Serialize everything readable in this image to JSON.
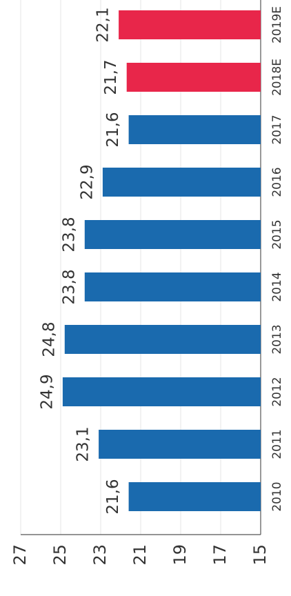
{
  "chart_data": {
    "type": "bar",
    "categories": [
      "2010",
      "2011",
      "2012",
      "2013",
      "2014",
      "2015",
      "2016",
      "2017",
      "2018E",
      "2019E"
    ],
    "values": [
      21.6,
      23.1,
      24.9,
      24.8,
      23.8,
      23.8,
      22.9,
      21.6,
      21.7,
      22.1
    ],
    "value_labels": [
      "21,6",
      "23,1",
      "24,9",
      "24,8",
      "23,8",
      "23,8",
      "22,9",
      "21,6",
      "21,7",
      "22,1"
    ],
    "colors": [
      "#1a6aae",
      "#1a6aae",
      "#1a6aae",
      "#1a6aae",
      "#1a6aae",
      "#1a6aae",
      "#1a6aae",
      "#1a6aae",
      "#e8264a",
      "#e8264a"
    ],
    "ylim": [
      15,
      27
    ],
    "yticks": [
      15,
      17,
      19,
      21,
      23,
      25,
      27
    ],
    "grid": true
  }
}
